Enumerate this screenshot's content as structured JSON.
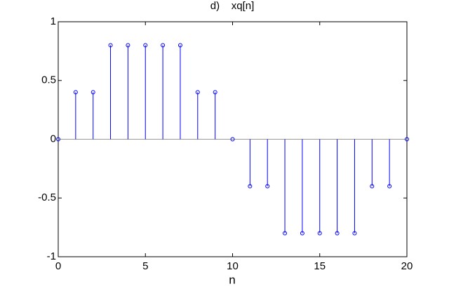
{
  "chart_data": {
    "type": "stem",
    "title": "d)    xq[n]",
    "x_label": "n",
    "x": [
      0,
      1,
      2,
      3,
      4,
      5,
      6,
      7,
      8,
      9,
      10,
      11,
      12,
      13,
      14,
      15,
      16,
      17,
      18,
      19,
      20
    ],
    "values": [
      0,
      0.4,
      0.4,
      0.8,
      0.8,
      0.8,
      0.8,
      0.8,
      0.4,
      0.4,
      0,
      -0.4,
      -0.4,
      -0.8,
      -0.8,
      -0.8,
      -0.8,
      -0.8,
      -0.4,
      -0.4,
      0
    ],
    "color": "#0000ff",
    "baseline_color": "#999999",
    "xlim": [
      0,
      20
    ],
    "xticks": [
      0,
      5,
      10,
      15,
      20
    ],
    "ylim": [
      -1,
      1
    ],
    "yticks": [
      -1,
      -0.5,
      0,
      0.5,
      1
    ]
  }
}
